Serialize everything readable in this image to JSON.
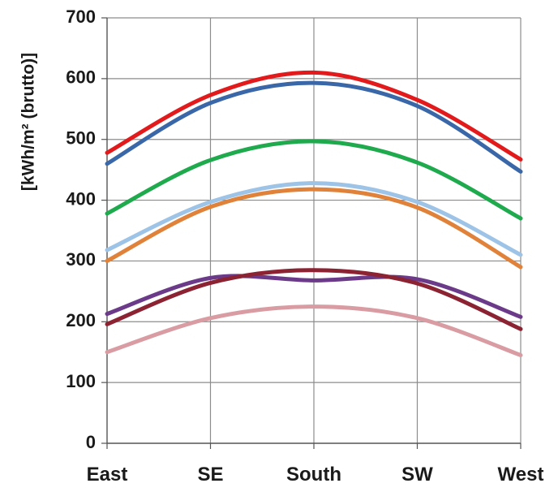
{
  "chart_data": {
    "type": "line",
    "title": "",
    "xlabel": "",
    "ylabel": "[kWh/m² (brutto)]",
    "categories": [
      "East",
      "SE",
      "South",
      "SW",
      "West"
    ],
    "ylim": [
      0,
      700
    ],
    "yticks": [
      "0",
      "100",
      "200",
      "300",
      "400",
      "500",
      "600",
      "700"
    ],
    "grid": true,
    "legend": "none",
    "series": [
      {
        "color": "#e31a1c",
        "values": [
          478,
          573,
          610,
          565,
          467
        ]
      },
      {
        "color": "#3a67a8",
        "values": [
          460,
          560,
          593,
          555,
          447
        ]
      },
      {
        "color": "#1faa4e",
        "values": [
          378,
          466,
          497,
          462,
          370
        ]
      },
      {
        "color": "#9dc3e6",
        "values": [
          318,
          397,
          428,
          397,
          310
        ]
      },
      {
        "color": "#e0823a",
        "values": [
          300,
          389,
          418,
          388,
          290
        ]
      },
      {
        "color": "#6b3b8a",
        "values": [
          213,
          272,
          268,
          270,
          208
        ]
      },
      {
        "color": "#8b2333",
        "values": [
          196,
          264,
          285,
          263,
          188
        ]
      },
      {
        "color": "#d99ca3",
        "values": [
          150,
          206,
          225,
          206,
          145
        ]
      }
    ]
  }
}
